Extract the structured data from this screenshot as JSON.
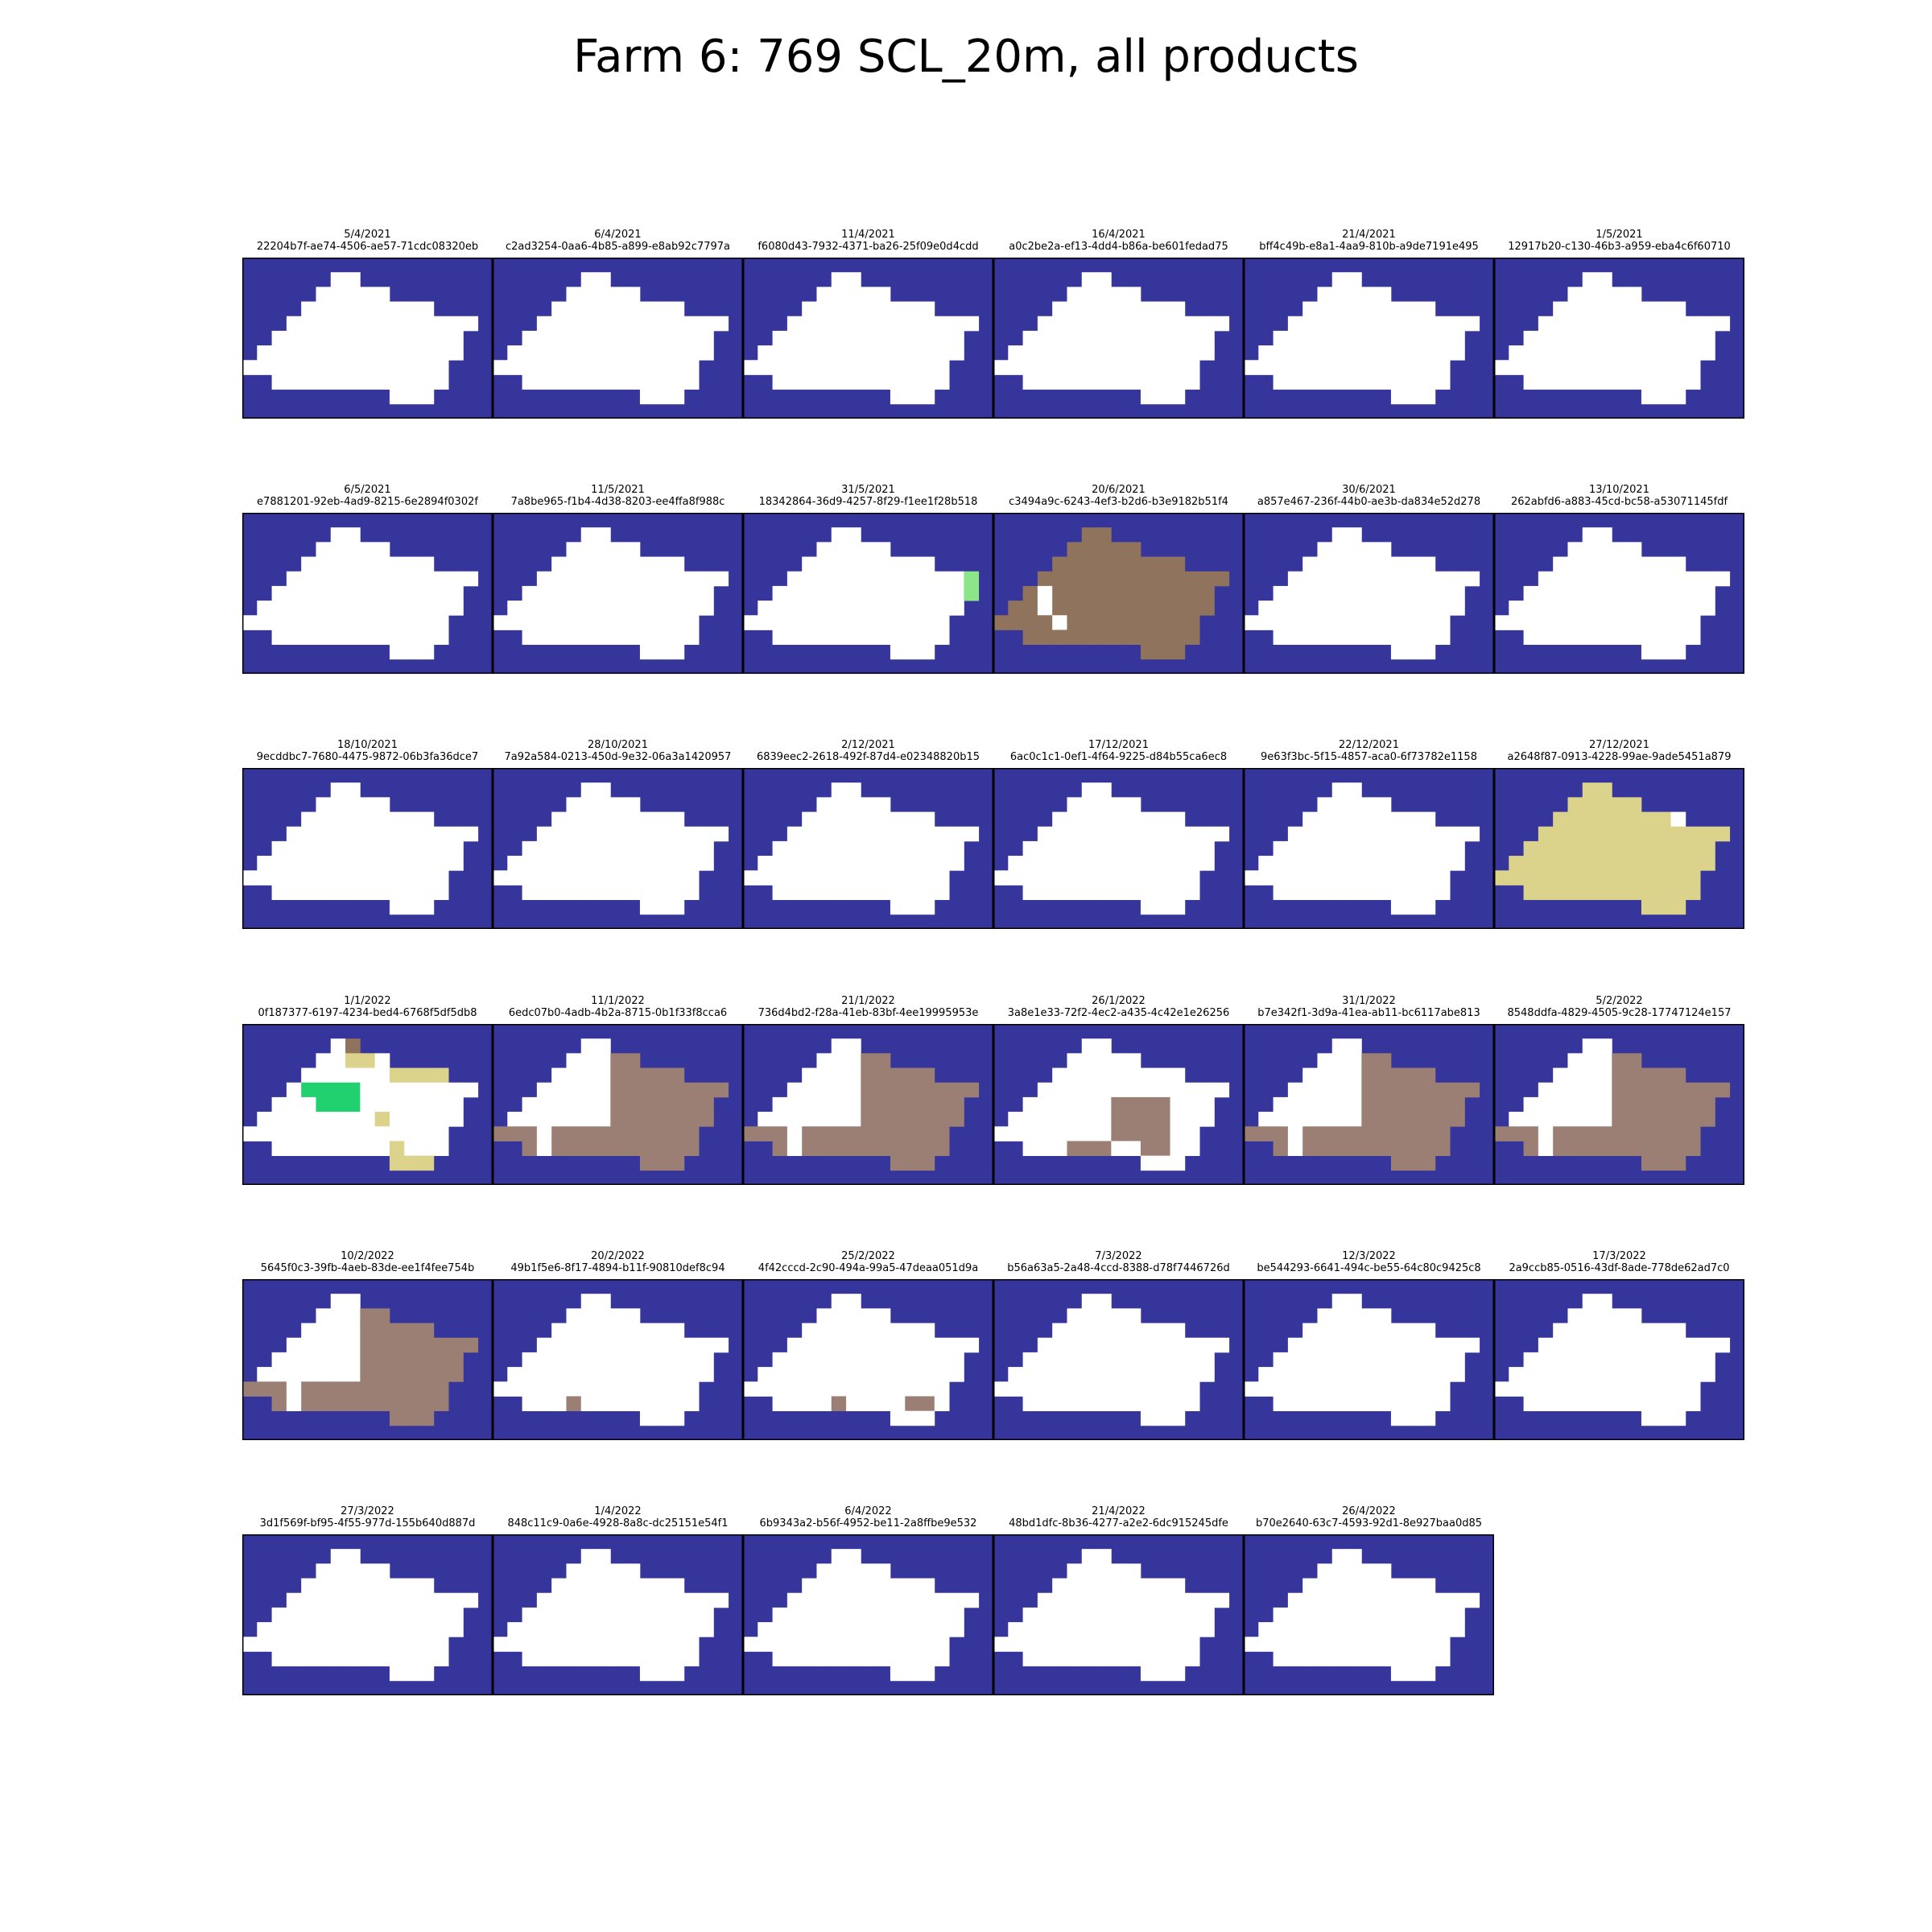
{
  "title": "Farm 6: 769 SCL_20m, all products",
  "colors": {
    "water": "#35359b",
    "vegetation": "#ffffff",
    "cloud_high": "#ffffff",
    "snow": "#ffffff",
    "dark_soil": "#8f735c",
    "bare_soil": "#9b7f75",
    "thin_cirrus": "#dbd38b",
    "green_veg": "#21d16f",
    "light_green": "#8de58a"
  },
  "chart_data": {
    "type": "heatmap",
    "grid": {
      "rows": 11,
      "cols": 17
    },
    "legend": "none",
    "panels": [
      {
        "date": "5/4/2021",
        "id": "22204b7f-ae74-4506-ae57-71cdc08320eb"
      },
      {
        "date": "6/4/2021",
        "id": "c2ad3254-0aa6-4b85-a899-e8ab92c7797a"
      },
      {
        "date": "11/4/2021",
        "id": "f6080d43-7932-4371-ba26-25f09e0d4cdd"
      },
      {
        "date": "16/4/2021",
        "id": "a0c2be2a-ef13-4dd4-b86a-be601fedad75"
      },
      {
        "date": "21/4/2021",
        "id": "bff4c49b-e8a1-4aa9-810b-a9de7191e495"
      },
      {
        "date": "1/5/2021",
        "id": "12917b20-c130-46b3-a959-eba4c6f60710"
      },
      {
        "date": "6/5/2021",
        "id": "e7881201-92eb-4ad9-8215-6e2894f0302f"
      },
      {
        "date": "11/5/2021",
        "id": "7a8be965-f1b4-4d38-8203-ee4ffa8f988c"
      },
      {
        "date": "31/5/2021",
        "id": "18342864-36d9-4257-8f29-f1ee1f28b518",
        "overlay": "green_edge"
      },
      {
        "date": "20/6/2021",
        "id": "c3494a9c-6243-4ef3-b2d6-b3e9182b51f4",
        "overlay": "dark_soil"
      },
      {
        "date": "30/6/2021",
        "id": "a857e467-236f-44b0-ae3b-da834e52d278"
      },
      {
        "date": "13/10/2021",
        "id": "262abfd6-a883-45cd-bc58-a53071145fdf"
      },
      {
        "date": "18/10/2021",
        "id": "9ecddbc7-7680-4475-9872-06b3fa36dce7"
      },
      {
        "date": "28/10/2021",
        "id": "7a92a584-0213-450d-9e32-06a3a1420957"
      },
      {
        "date": "2/12/2021",
        "id": "6839eec2-2618-492f-87d4-e02348820b15"
      },
      {
        "date": "17/12/2021",
        "id": "6ac0c1c1-0ef1-4f64-9225-d84b55ca6ec8"
      },
      {
        "date": "22/12/2021",
        "id": "9e63f3bc-5f15-4857-aca0-6f73782e1158"
      },
      {
        "date": "27/12/2021",
        "id": "a2648f87-0913-4228-99ae-9ade5451a879",
        "overlay": "cirrus"
      },
      {
        "date": "1/1/2022",
        "id": "0f187377-6197-4234-bed4-6768f5df5db8",
        "overlay": "mixed"
      },
      {
        "date": "11/1/2022",
        "id": "6edc07b0-4adb-4b2a-8715-0b1f33f8cca6",
        "overlay": "soil_east"
      },
      {
        "date": "21/1/2022",
        "id": "736d4bd2-f28a-41eb-83bf-4ee19995953e",
        "overlay": "soil_east"
      },
      {
        "date": "26/1/2022",
        "id": "3a8e1e33-72f2-4ec2-a435-4c42e1e26256",
        "overlay": "soil_patches"
      },
      {
        "date": "31/1/2022",
        "id": "b7e342f1-3d9a-41ea-ab11-bc6117abe813",
        "overlay": "soil_east"
      },
      {
        "date": "5/2/2022",
        "id": "8548ddfa-4829-4505-9c28-17747124e157",
        "overlay": "soil_east"
      },
      {
        "date": "10/2/2022",
        "id": "5645f0c3-39fb-4aeb-83de-ee1f4fee754b",
        "overlay": "soil_east"
      },
      {
        "date": "20/2/2022",
        "id": "49b1f5e6-8f17-4894-b11f-90810def8c94",
        "overlay": "speck1"
      },
      {
        "date": "25/2/2022",
        "id": "4f42cccd-2c90-494a-99a5-47deaa051d9a",
        "overlay": "speck2"
      },
      {
        "date": "7/3/2022",
        "id": "b56a63a5-2a48-4ccd-8388-d78f7446726d"
      },
      {
        "date": "12/3/2022",
        "id": "be544293-6641-494c-be55-64c80c9425c8"
      },
      {
        "date": "17/3/2022",
        "id": "2a9ccb85-0516-43df-8ade-778de62ad7c0"
      },
      {
        "date": "27/3/2022",
        "id": "3d1f569f-bf95-4f55-977d-155b640d887d"
      },
      {
        "date": "1/4/2022",
        "id": "848c11c9-0a6e-4928-8a8c-dc25151e54f1"
      },
      {
        "date": "6/4/2022",
        "id": "6b9343a2-b56f-4952-be11-2a8ffbe9e532"
      },
      {
        "date": "21/4/2022",
        "id": "48bd1dfc-8b36-4277-a2e2-6dc915245dfe"
      },
      {
        "date": "26/4/2022",
        "id": "b70e2640-63c7-4593-92d1-8e927baa0d85"
      }
    ]
  }
}
